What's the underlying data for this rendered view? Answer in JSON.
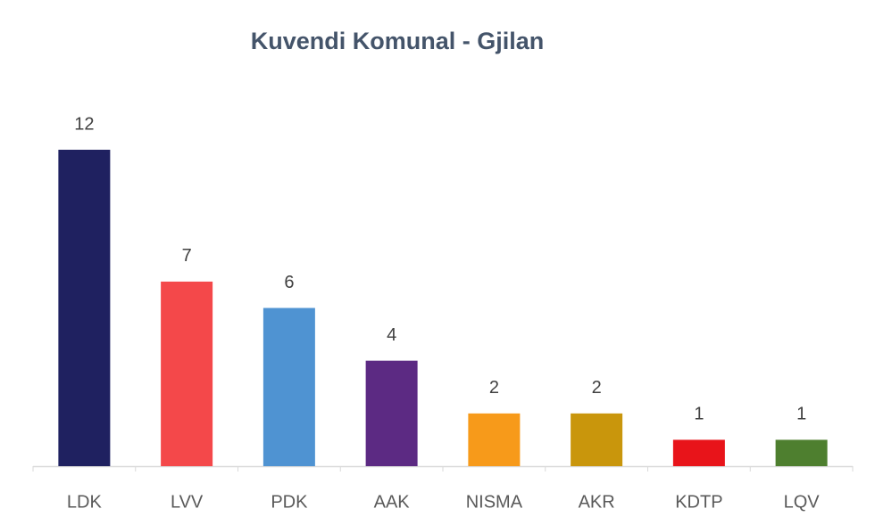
{
  "chart_data": {
    "type": "bar",
    "title": "Kuvendi Komunal - Gjilan",
    "categories": [
      "LDK",
      "LVV",
      "PDK",
      "AAK",
      "NISMA",
      "AKR",
      "KDTP",
      "LQV"
    ],
    "values": [
      12,
      7,
      6,
      4,
      2,
      2,
      1,
      1
    ],
    "colors": [
      "#1f2160",
      "#f4484a",
      "#4f93d2",
      "#5c2a83",
      "#f79a1a",
      "#c9960c",
      "#e8141a",
      "#4e7f2f"
    ]
  }
}
